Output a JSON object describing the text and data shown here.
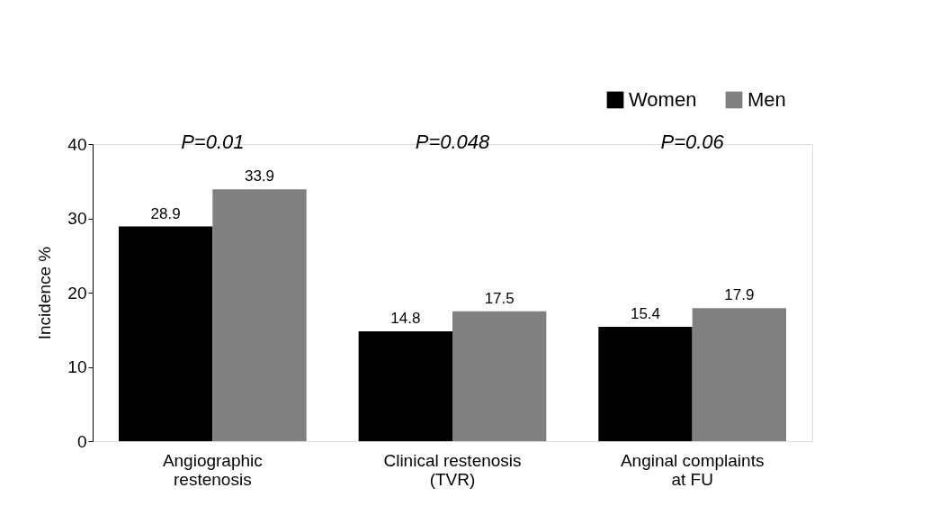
{
  "chart_data": {
    "type": "bar",
    "categories": [
      "Angiographic restenosis",
      "Clinical restenosis (TVR)",
      "Anginal complaints at FU"
    ],
    "series": [
      {
        "name": "Women",
        "color": "#000000",
        "values": [
          28.9,
          14.8,
          15.4
        ]
      },
      {
        "name": "Men",
        "color": "#808080",
        "values": [
          33.9,
          17.5,
          17.9
        ]
      }
    ],
    "ylabel": "Incidence %",
    "ylim": [
      0,
      40
    ],
    "yticks": [
      0,
      10,
      20,
      30,
      40
    ],
    "annotations": [
      "P=0.01",
      "P=0.048",
      "P=0.06"
    ],
    "data_labels": true,
    "grid": false,
    "legend": "top right"
  }
}
